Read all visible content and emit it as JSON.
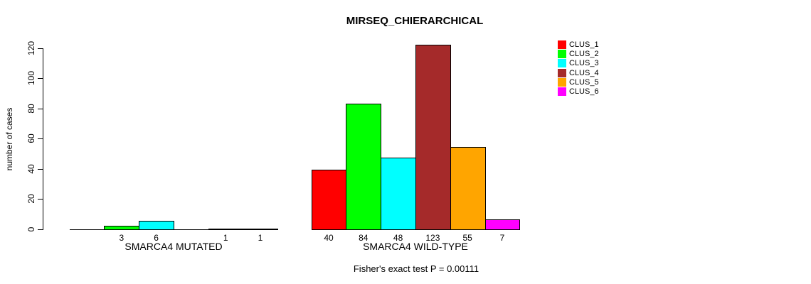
{
  "chart_data": {
    "type": "bar",
    "title": "MIRSEQ_CHIERARCHICAL",
    "xlabel": "",
    "ylabel": "number of cases",
    "ylim": [
      0,
      120
    ],
    "yticks": [
      0,
      20,
      40,
      60,
      80,
      100,
      120
    ],
    "grid": false,
    "categories": [
      "SMARCA4 MUTATED",
      "SMARCA4 WILD-TYPE"
    ],
    "series": [
      {
        "name": "CLUS_1",
        "color": "#FF0000",
        "values": [
          0,
          40
        ]
      },
      {
        "name": "CLUS_2",
        "color": "#00FF00",
        "values": [
          3,
          84
        ]
      },
      {
        "name": "CLUS_3",
        "color": "#00FFFF",
        "values": [
          6,
          48
        ]
      },
      {
        "name": "CLUS_4",
        "color": "#A52A2A",
        "values": [
          0,
          123
        ]
      },
      {
        "name": "CLUS_5",
        "color": "#FFA500",
        "values": [
          1,
          55
        ]
      },
      {
        "name": "CLUS_6",
        "color": "#FF00FF",
        "values": [
          1,
          7
        ]
      }
    ],
    "bar_value_labels": {
      "SMARCA4 MUTATED": [
        "",
        "3",
        "6",
        "",
        "1",
        "1"
      ],
      "SMARCA4 WILD-TYPE": [
        "40",
        "84",
        "48",
        "123",
        "55",
        "7"
      ]
    },
    "legend": {
      "position": "right",
      "entries": [
        "CLUS_1",
        "CLUS_2",
        "CLUS_3",
        "CLUS_4",
        "CLUS_5",
        "CLUS_6"
      ]
    },
    "footnote": "Fisher's exact test P = 0.00111",
    "colors": {
      "background": "#FFFFFF",
      "axis": "#000000",
      "bar_border": "#000000"
    }
  }
}
